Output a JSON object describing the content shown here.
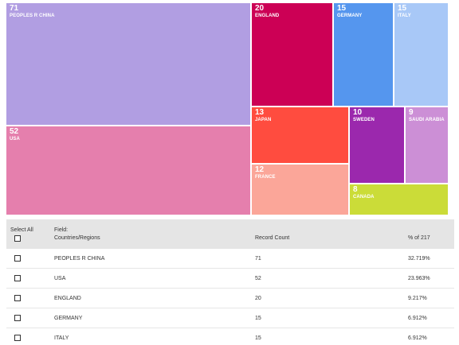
{
  "treemap": {
    "total": 217,
    "tiles": [
      {
        "label": "PEOPLES R CHINA",
        "count": "71",
        "color": "#b19ee2"
      },
      {
        "label": "USA",
        "count": "52",
        "color": "#e57fad"
      },
      {
        "label": "ENGLAND",
        "count": "20",
        "color": "#cc0055"
      },
      {
        "label": "GERMANY",
        "count": "15",
        "color": "#5596ee"
      },
      {
        "label": "ITALY",
        "count": "15",
        "color": "#a8c8f7"
      },
      {
        "label": "JAPAN",
        "count": "13",
        "color": "#ff4c3f"
      },
      {
        "label": "FRANCE",
        "count": "12",
        "color": "#fba699"
      },
      {
        "label": "SWEDEN",
        "count": "10",
        "color": "#9b28ad"
      },
      {
        "label": "SAUDI ARABIA",
        "count": "9",
        "color": "#cc8fd6"
      },
      {
        "label": "CANADA",
        "count": "8",
        "color": "#cbdc38"
      }
    ]
  },
  "table": {
    "select_all_label": "Select All",
    "field_label": "Field:",
    "field_name": "Countries/Regions",
    "record_count_label": "Record Count",
    "percent_label": "% of 217",
    "rows": [
      {
        "name": "PEOPLES R CHINA",
        "count": "71",
        "percent": "32.719%"
      },
      {
        "name": "USA",
        "count": "52",
        "percent": "23.963%"
      },
      {
        "name": "ENGLAND",
        "count": "20",
        "percent": "9.217%"
      },
      {
        "name": "GERMANY",
        "count": "15",
        "percent": "6.912%"
      },
      {
        "name": "ITALY",
        "count": "15",
        "percent": "6.912%"
      }
    ]
  }
}
